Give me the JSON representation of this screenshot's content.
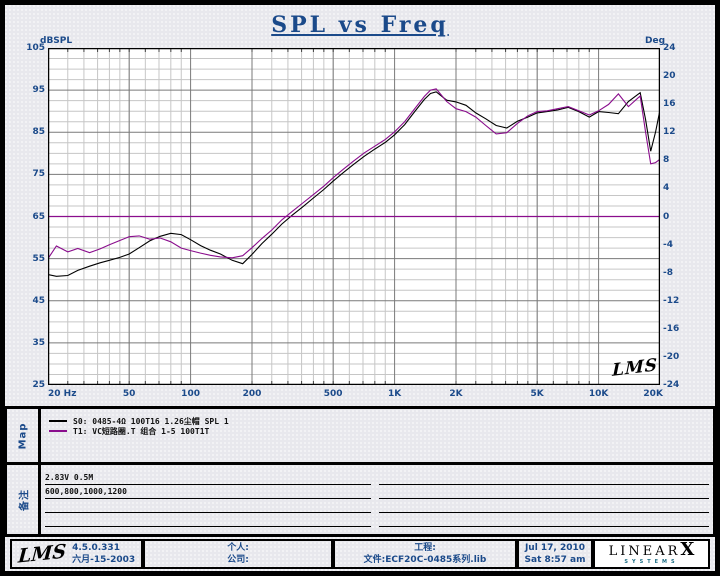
{
  "window": {
    "title": "SPL vs Freq"
  },
  "chart": {
    "y_left": {
      "label": "dBSPL",
      "ticks": [
        105,
        95,
        85,
        75,
        65,
        55,
        45,
        35,
        25
      ],
      "min": 25,
      "max": 105
    },
    "y_right": {
      "label": "Deg",
      "ticks": [
        24,
        20,
        16,
        12,
        8,
        4,
        0,
        -4,
        -8,
        -12,
        -16,
        -20,
        -24
      ],
      "min": -24,
      "max": 24
    },
    "x": {
      "tick_labels": [
        "20 Hz",
        "50",
        "100",
        "200",
        "500",
        "1K",
        "2K",
        "5K",
        "10K",
        "20K"
      ],
      "tick_freqs": [
        20,
        50,
        100,
        200,
        500,
        1000,
        2000,
        5000,
        10000,
        20000
      ],
      "min_hz": 20,
      "max_hz": 20000
    },
    "watermark": "LMS"
  },
  "chart_data": {
    "type": "line",
    "title": "SPL vs Freq",
    "x_scale": "log",
    "x_range": [
      20,
      20000
    ],
    "ylabel_left": "dBSPL",
    "ylim_left": [
      25,
      105
    ],
    "ylabel_right": "Deg",
    "ylim_right": [
      -24,
      24
    ],
    "grid": "on",
    "legend_position": "map-section-below-chart",
    "x": [
      20,
      22,
      25,
      28,
      32,
      36,
      40,
      45,
      50,
      56,
      63,
      71,
      80,
      90,
      100,
      112,
      125,
      140,
      160,
      180,
      200,
      224,
      250,
      280,
      315,
      355,
      400,
      450,
      500,
      560,
      630,
      710,
      800,
      900,
      1000,
      1120,
      1250,
      1400,
      1500,
      1600,
      1800,
      2000,
      2240,
      2500,
      2800,
      3150,
      3550,
      4000,
      4500,
      5000,
      5600,
      6300,
      7100,
      8000,
      9000,
      10000,
      11200,
      12500,
      14000,
      16000,
      17000,
      18000,
      19000,
      20000
    ],
    "series": [
      {
        "name": "S0: 0485-4Ω 100T16 1.26尘帽 SPL 1",
        "color": "#000000",
        "axis": "left",
        "y": [
          51.2,
          50.8,
          51.0,
          52.2,
          53.2,
          54.0,
          54.6,
          55.3,
          56.1,
          57.6,
          59.2,
          60.3,
          61.0,
          60.7,
          59.5,
          58.1,
          57.0,
          56.1,
          54.6,
          53.8,
          56.0,
          58.6,
          60.8,
          63.2,
          65.3,
          67.3,
          69.4,
          71.4,
          73.4,
          75.4,
          77.4,
          79.3,
          81.0,
          82.6,
          84.4,
          86.8,
          89.8,
          92.8,
          94.2,
          94.6,
          92.6,
          92.2,
          91.4,
          89.6,
          88.2,
          86.6,
          86.0,
          87.6,
          88.6,
          89.6,
          89.9,
          90.3,
          90.9,
          89.9,
          88.6,
          89.9,
          89.7,
          89.4,
          92.3,
          94.4,
          88.0,
          80.5,
          85.0,
          90.3
        ]
      },
      {
        "name": "T1: VC短路圈.T 组合 1-5 100T1T",
        "color": "#8a0d8d",
        "axis": "left",
        "y": [
          55.0,
          58.0,
          56.6,
          57.4,
          56.4,
          57.3,
          58.3,
          59.3,
          60.2,
          60.4,
          59.6,
          59.9,
          59.0,
          57.5,
          56.9,
          56.3,
          55.8,
          55.4,
          55.2,
          55.7,
          57.6,
          59.8,
          61.8,
          64.2,
          66.2,
          68.2,
          70.2,
          72.2,
          74.2,
          76.2,
          78.2,
          80.1,
          81.7,
          83.3,
          85.1,
          87.5,
          90.5,
          93.5,
          95.0,
          95.3,
          92.3,
          90.6,
          89.9,
          88.6,
          86.6,
          84.6,
          84.9,
          87.1,
          88.9,
          89.9,
          90.1,
          90.6,
          91.1,
          90.1,
          89.1,
          90.1,
          91.6,
          94.1,
          91.1,
          93.6,
          85.0,
          77.5,
          77.8,
          78.6
        ]
      },
      {
        "name": "phase-reference-line",
        "color": "#8a0d8d",
        "axis": "right",
        "hline": 0
      }
    ]
  },
  "map_section": {
    "label": "Map",
    "legend": [
      {
        "color": "#000000",
        "text": "S0: 0485-4Ω 100T16 1.26尘帽 SPL 1"
      },
      {
        "color": "#8a0d8d",
        "text": "T1: VC短路圈.T 组合 1-5 100T1T"
      }
    ]
  },
  "notes_section": {
    "label": "备注",
    "lines": [
      "2.83V 0.5M",
      "600,800,1000,1200",
      "",
      ""
    ],
    "right_lines": [
      "",
      "",
      "",
      ""
    ]
  },
  "status_bar": {
    "logo": "LMS",
    "version": "4.5.0.331",
    "date_cn": "六月-15-2003",
    "personal_label": "个人:",
    "company_label": "公司:",
    "project_label": "工程:",
    "file_label": "文件:",
    "file_value": "ECF20C-0485系列.lib",
    "date": "Jul 17, 2010",
    "time": "Sat 8:57 am",
    "brand": {
      "name": "LINEAR",
      "x": "X",
      "sub": "SYSTEMS"
    }
  }
}
